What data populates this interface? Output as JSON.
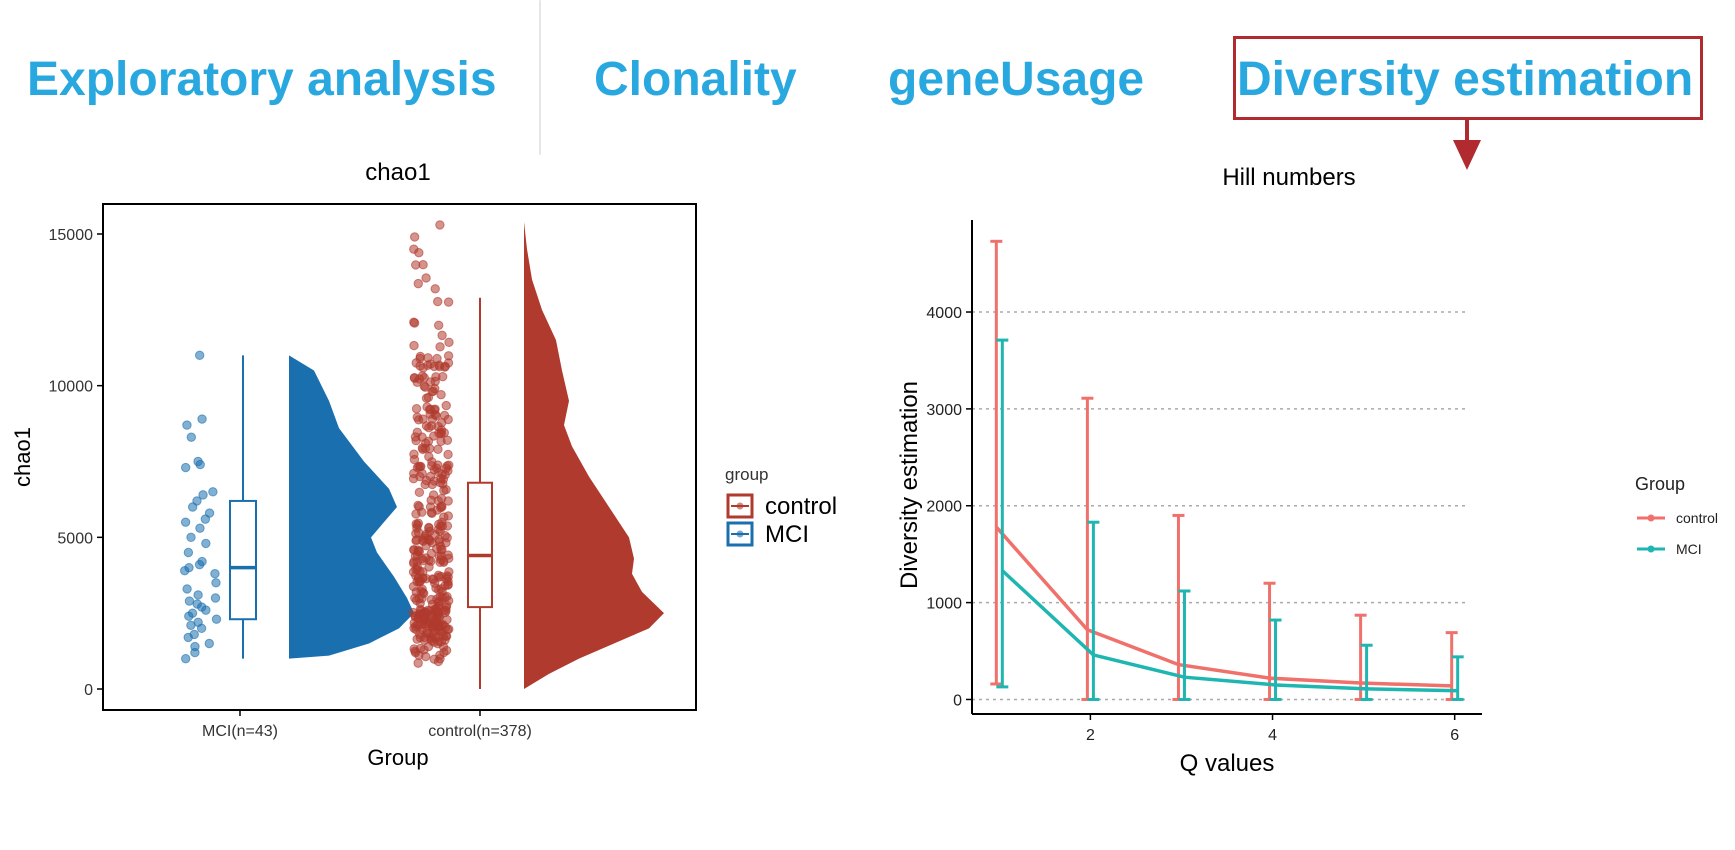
{
  "tabs": [
    {
      "label": "Exploratory analysis",
      "active": false
    },
    {
      "label": "Clonality",
      "active": false
    },
    {
      "label": "geneUsage",
      "active": false
    },
    {
      "label": "Diversity estimation",
      "active": true
    }
  ],
  "colors": {
    "tab_text": "#29a8e0",
    "highlight": "#b02a2f",
    "control_dark": "#b03a2e",
    "mci_dark": "#1a6faf",
    "control_line": "#f0716b",
    "mci_line": "#1fb6b2"
  },
  "chart_data": [
    {
      "type": "raincloud",
      "title": "chao1",
      "xlabel": "Group",
      "ylabel": "chao1",
      "ylim": [
        0,
        16500
      ],
      "yticks": [
        0,
        5000,
        10000,
        15000
      ],
      "categories": [
        "MCI(n=43)",
        "control(n=378)"
      ],
      "legend": {
        "title": "group",
        "entries": [
          "control",
          "MCI"
        ]
      },
      "series": [
        {
          "name": "MCI",
          "n": 43,
          "box": {
            "min": 1000,
            "q1": 2300,
            "median": 4000,
            "q3": 6200,
            "max": 11000
          },
          "density_range": [
            1000,
            11000
          ],
          "points": [
            11000,
            8900,
            8700,
            8300,
            7500,
            7400,
            7300,
            6500,
            6400,
            6200,
            6000,
            5800,
            5600,
            5500,
            5300,
            5000,
            4800,
            4500,
            4200,
            4100,
            4000,
            3900,
            3800,
            3500,
            3300,
            3100,
            3000,
            2900,
            2800,
            2700,
            2600,
            2500,
            2400,
            2300,
            2200,
            2100,
            2000,
            1800,
            1700,
            1500,
            1400,
            1200,
            1000
          ]
        },
        {
          "name": "control",
          "n": 378,
          "box": {
            "min": 0,
            "q1": 2700,
            "median": 4400,
            "q3": 6800,
            "max": 12900
          },
          "density_range": [
            0,
            15400
          ],
          "points": []
        }
      ]
    },
    {
      "type": "line",
      "title": "Hill numbers",
      "xlabel": "Q values",
      "ylabel": "Diversity estimation",
      "xlim": [
        0.7,
        6.3
      ],
      "ylim": [
        -150,
        4950
      ],
      "xticks": [
        2,
        4,
        6
      ],
      "yticks": [
        0,
        1000,
        2000,
        3000,
        4000
      ],
      "legend": {
        "title": "Group",
        "entries": [
          "control",
          "MCI"
        ]
      },
      "x": [
        1,
        2,
        3,
        4,
        5,
        6
      ],
      "series": [
        {
          "name": "control",
          "values": [
            1780,
            720,
            360,
            220,
            170,
            140
          ],
          "err_low": [
            160,
            0,
            0,
            0,
            0,
            0
          ],
          "err_high": [
            4730,
            3110,
            1900,
            1200,
            870,
            690
          ]
        },
        {
          "name": "MCI",
          "values": [
            1330,
            460,
            230,
            150,
            110,
            90
          ],
          "err_low": [
            130,
            0,
            0,
            0,
            0,
            0
          ],
          "err_high": [
            3710,
            1830,
            1120,
            820,
            560,
            440
          ]
        }
      ]
    }
  ]
}
